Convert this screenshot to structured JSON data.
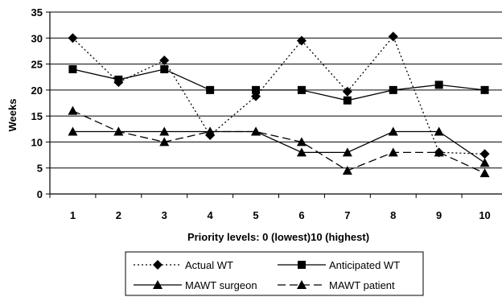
{
  "chart_data": {
    "type": "line",
    "title": "",
    "xlabel": "Priority levels: 0 (lowest)10 (highest)",
    "ylabel": "Weeks",
    "categories": [
      "1",
      "2",
      "3",
      "4",
      "5",
      "6",
      "7",
      "8",
      "9",
      "10"
    ],
    "ylim": [
      0,
      35
    ],
    "yticks": [
      "0",
      "5",
      "10",
      "15",
      "20",
      "25",
      "30",
      "35"
    ],
    "grid": "horizontal",
    "legend_position": "bottom",
    "series": [
      {
        "name": "Actual WT",
        "values": [
          30,
          21.5,
          25.7,
          11.3,
          18.8,
          29.5,
          19.7,
          30.3,
          8,
          7.7
        ],
        "marker": "diamond",
        "line": "dotted",
        "color": "#000000"
      },
      {
        "name": "Anticipated WT",
        "values": [
          24,
          22,
          24,
          20,
          20,
          20,
          18,
          20,
          21,
          20
        ],
        "marker": "square",
        "line": "solid",
        "color": "#000000"
      },
      {
        "name": "MAWT surgeon",
        "values": [
          12,
          12,
          12,
          12,
          12,
          8,
          8,
          12,
          12,
          6
        ],
        "marker": "triangle",
        "line": "solid",
        "color": "#000000"
      },
      {
        "name": "MAWT patient",
        "values": [
          16,
          12,
          10,
          12,
          12,
          10,
          4.5,
          8,
          8,
          4
        ],
        "marker": "triangle",
        "line": "dashed",
        "color": "#000000"
      }
    ]
  }
}
